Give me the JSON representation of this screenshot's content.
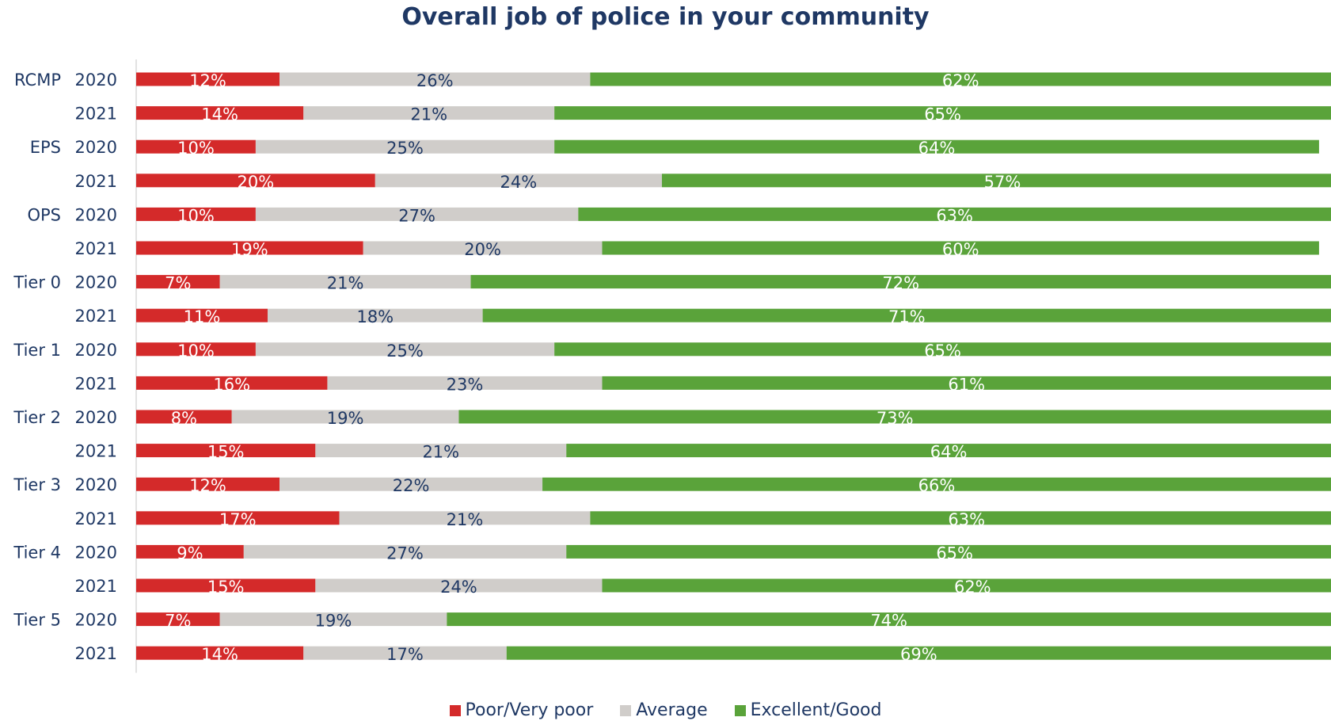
{
  "chart_data": {
    "type": "bar",
    "orientation": "horizontal",
    "stacked": true,
    "title": "Overall job of police in your community",
    "groups": [
      "RCMP",
      "EPS",
      "OPS",
      "Tier 0",
      "Tier 1",
      "Tier 2",
      "Tier 3",
      "Tier 4",
      "Tier 5"
    ],
    "years": [
      "2020",
      "2021"
    ],
    "series": [
      {
        "name": "Poor/Very poor",
        "color": "#d42a2a",
        "values": [
          12,
          14,
          10,
          20,
          10,
          19,
          7,
          11,
          10,
          16,
          8,
          15,
          12,
          17,
          9,
          15,
          7,
          14
        ]
      },
      {
        "name": "Average",
        "color": "#d0cdca",
        "values": [
          26,
          21,
          25,
          24,
          27,
          20,
          21,
          18,
          25,
          23,
          19,
          21,
          22,
          21,
          27,
          24,
          19,
          17
        ]
      },
      {
        "name": "Excellent/Good",
        "color": "#5aa33a",
        "values": [
          62,
          65,
          64,
          57,
          63,
          60,
          72,
          71,
          65,
          61,
          73,
          64,
          66,
          63,
          65,
          62,
          74,
          69
        ]
      }
    ],
    "value_suffix": "%",
    "xlim": [
      0,
      100
    ],
    "legend": "bottom",
    "grid": false
  }
}
